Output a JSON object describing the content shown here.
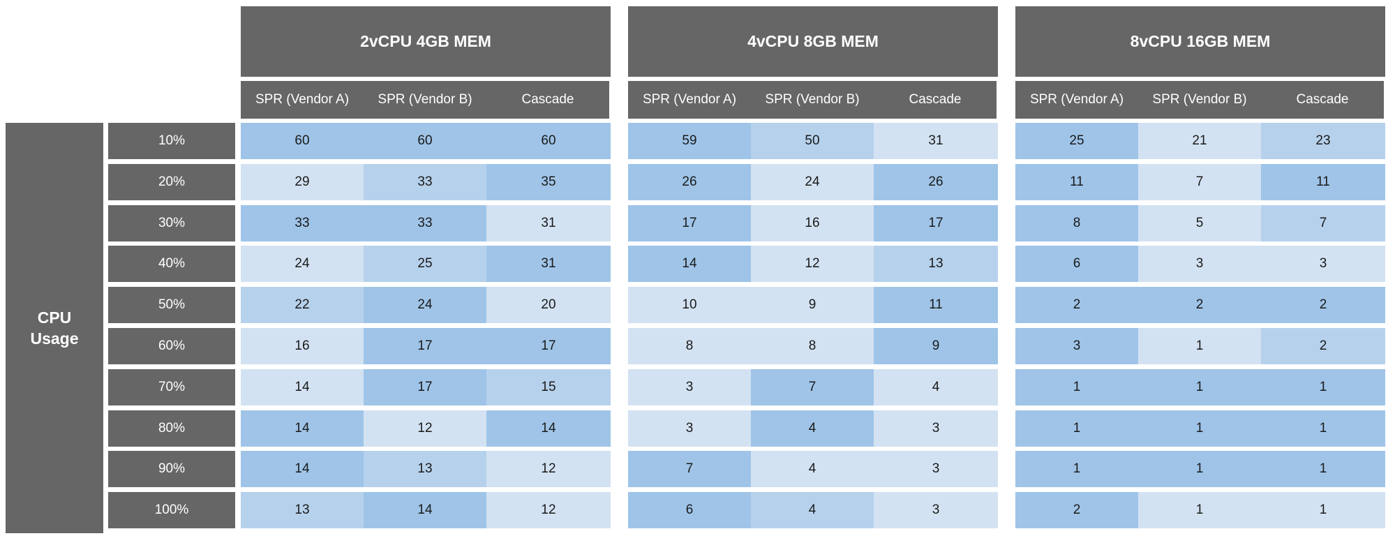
{
  "colors": {
    "header_bg": "#666666",
    "header_text": "#ffffff",
    "cell_light": "#d3e2f2",
    "cell_mid": "#b6d1ec",
    "cell_dark": "#9fc4e8"
  },
  "chart_data": {
    "type": "table",
    "row_axis_label": "CPU Usage",
    "rows": [
      "10%",
      "20%",
      "30%",
      "40%",
      "50%",
      "60%",
      "70%",
      "80%",
      "90%",
      "100%"
    ],
    "groups": [
      {
        "name": "2vCPU 4GB MEM",
        "columns": [
          "SPR (Vendor A)",
          "SPR (Vendor B)",
          "Cascade"
        ],
        "values": [
          [
            60,
            60,
            60
          ],
          [
            29,
            33,
            35
          ],
          [
            33,
            33,
            31
          ],
          [
            24,
            25,
            31
          ],
          [
            22,
            24,
            20
          ],
          [
            16,
            17,
            17
          ],
          [
            14,
            17,
            15
          ],
          [
            14,
            12,
            14
          ],
          [
            14,
            13,
            12
          ],
          [
            13,
            14,
            12
          ]
        ],
        "shades": [
          [
            2,
            2,
            2
          ],
          [
            0,
            1,
            2
          ],
          [
            2,
            2,
            0
          ],
          [
            0,
            1,
            2
          ],
          [
            1,
            2,
            0
          ],
          [
            0,
            2,
            2
          ],
          [
            0,
            2,
            1
          ],
          [
            2,
            0,
            2
          ],
          [
            2,
            1,
            0
          ],
          [
            1,
            2,
            0
          ]
        ]
      },
      {
        "name": "4vCPU 8GB MEM",
        "columns": [
          "SPR (Vendor A)",
          "SPR (Vendor B)",
          "Cascade"
        ],
        "values": [
          [
            59,
            50,
            31
          ],
          [
            26,
            24,
            26
          ],
          [
            17,
            16,
            17
          ],
          [
            14,
            12,
            13
          ],
          [
            10,
            9,
            11
          ],
          [
            8,
            8,
            9
          ],
          [
            3,
            7,
            4
          ],
          [
            3,
            4,
            3
          ],
          [
            7,
            4,
            3
          ],
          [
            6,
            4,
            3
          ]
        ],
        "shades": [
          [
            2,
            1,
            0
          ],
          [
            2,
            0,
            2
          ],
          [
            2,
            0,
            2
          ],
          [
            2,
            0,
            1
          ],
          [
            0,
            0,
            2
          ],
          [
            0,
            0,
            2
          ],
          [
            0,
            2,
            0
          ],
          [
            0,
            2,
            0
          ],
          [
            2,
            0,
            0
          ],
          [
            2,
            1,
            0
          ]
        ]
      },
      {
        "name": "8vCPU 16GB MEM",
        "columns": [
          "SPR (Vendor A)",
          "SPR (Vendor B)",
          "Cascade"
        ],
        "values": [
          [
            25,
            21,
            23
          ],
          [
            11,
            7,
            11
          ],
          [
            8,
            5,
            7
          ],
          [
            6,
            3,
            3
          ],
          [
            2,
            2,
            2
          ],
          [
            3,
            1,
            2
          ],
          [
            1,
            1,
            1
          ],
          [
            1,
            1,
            1
          ],
          [
            1,
            1,
            1
          ],
          [
            2,
            1,
            1
          ]
        ],
        "shades": [
          [
            2,
            0,
            1
          ],
          [
            2,
            0,
            2
          ],
          [
            2,
            0,
            1
          ],
          [
            2,
            0,
            0
          ],
          [
            2,
            2,
            2
          ],
          [
            2,
            0,
            1
          ],
          [
            2,
            2,
            2
          ],
          [
            2,
            2,
            2
          ],
          [
            2,
            2,
            2
          ],
          [
            2,
            0,
            0
          ]
        ]
      }
    ]
  }
}
